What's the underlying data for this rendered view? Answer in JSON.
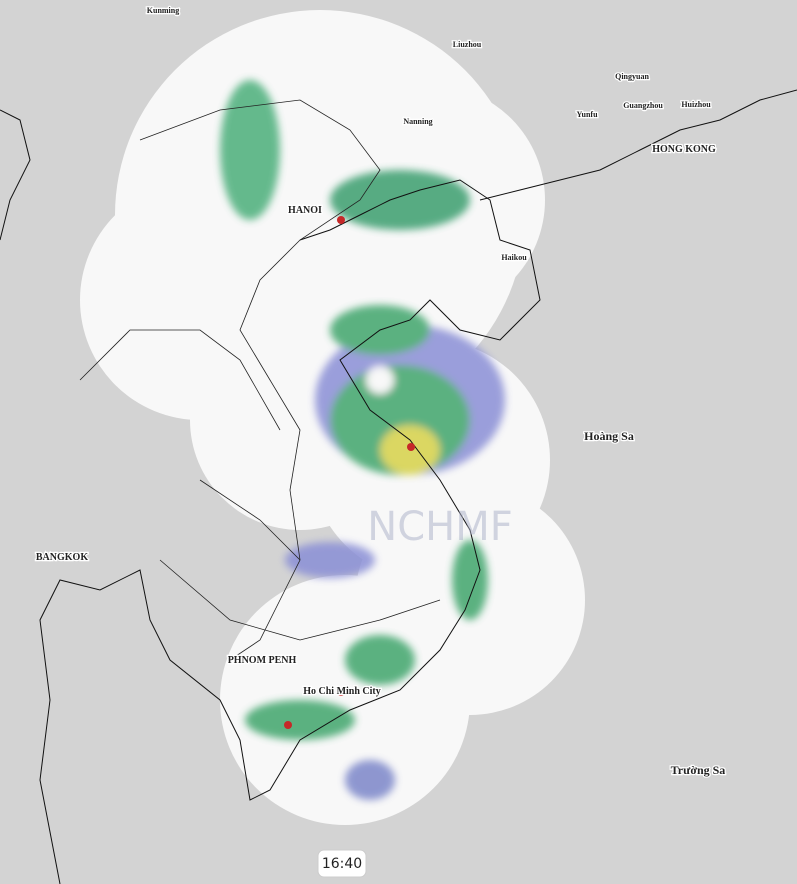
{
  "map": {
    "labels": {
      "kunming": "Kunming",
      "liuzhou": "Liuzhou",
      "qingyuan": "Qingyuan",
      "guangzhou": "Guangzhou",
      "huizhou": "Huizhou",
      "yunfu": "Yunfu",
      "nanning": "Nanning",
      "hongkong": "HONG KONG",
      "hanoi": "HANOI",
      "haikou": "Haikou",
      "hoangsa": "Hoàng Sa",
      "bangkok": "BANGKOK",
      "phnompenh": "PHNOM PENH",
      "hcmc": "Ho Chi Minh City",
      "truongsa": "Trường Sa"
    },
    "watermark": "NCHMF",
    "time": "16:40"
  }
}
